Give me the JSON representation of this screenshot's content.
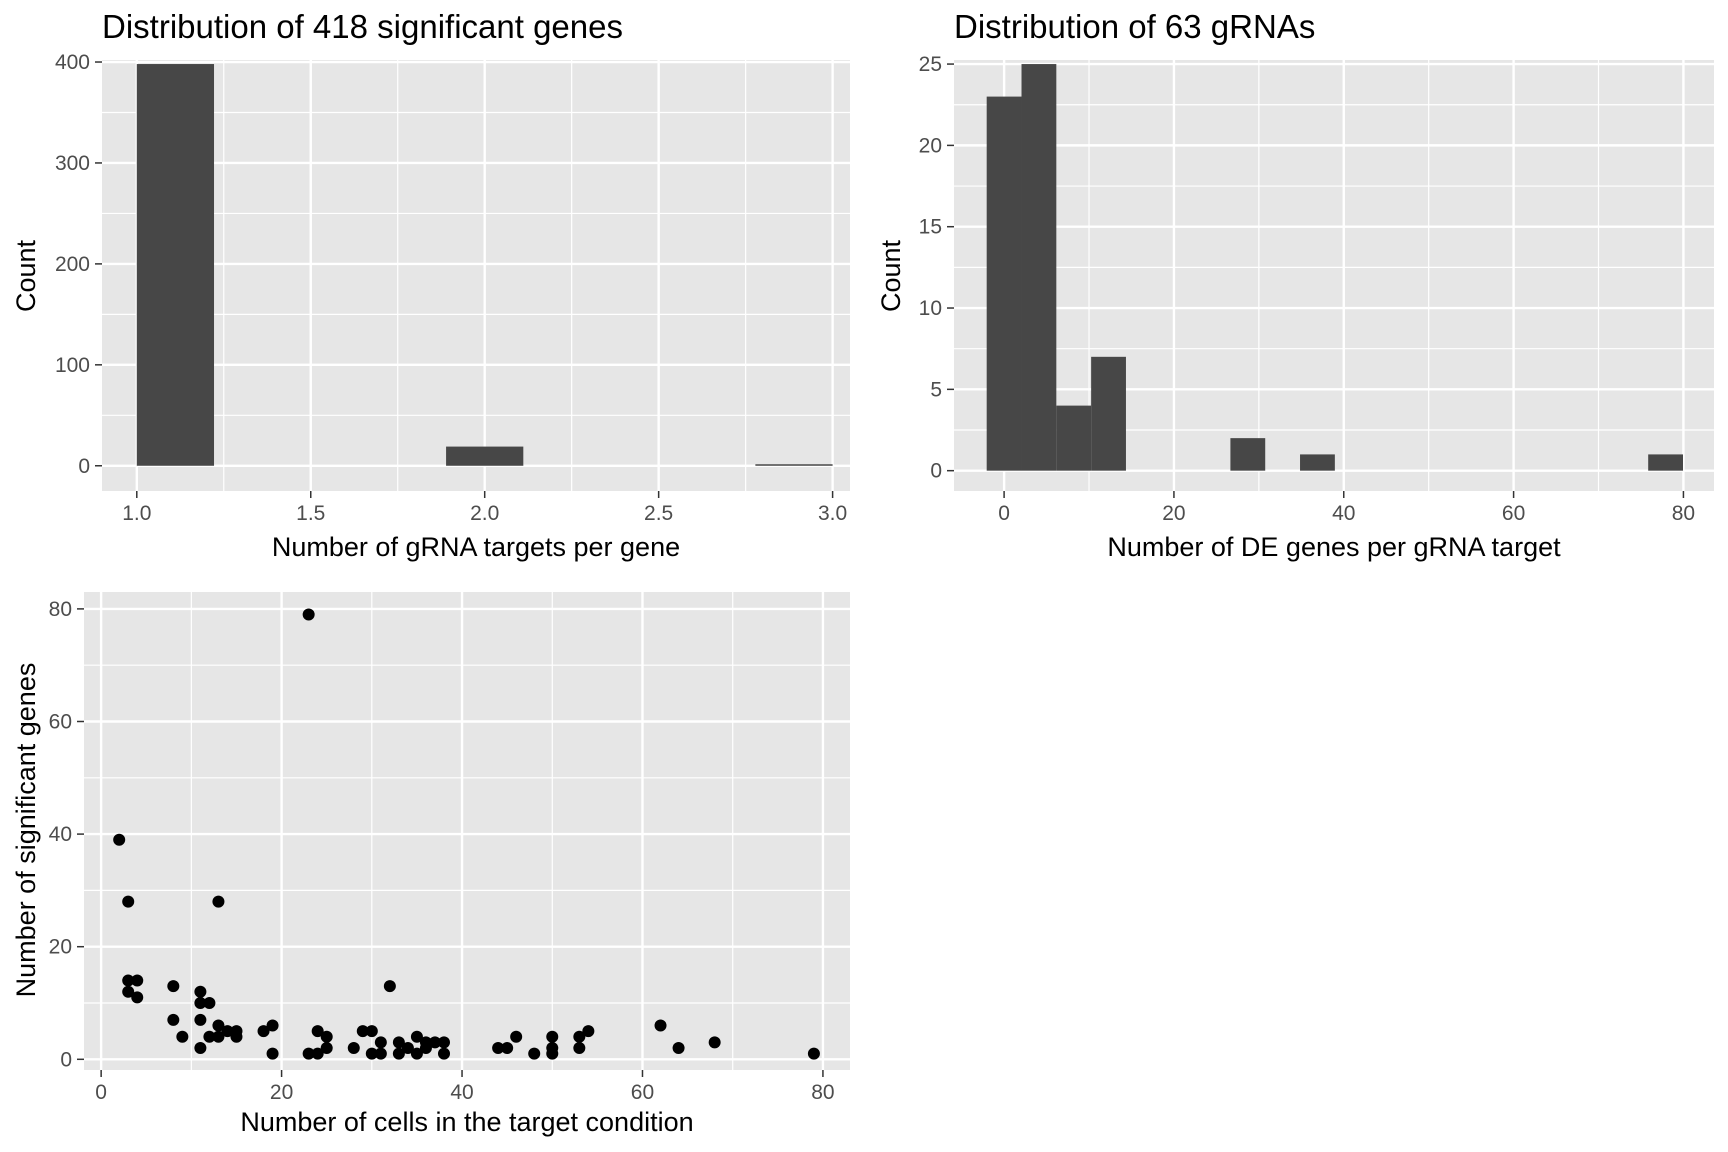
{
  "charts": [
    {
      "chart_data": {
        "type": "bar",
        "title": "Distribution of 418 significant genes",
        "xlabel": "Number of gRNA targets per gene",
        "ylabel": "Count",
        "xlim": [
          0.9,
          3.05
        ],
        "ylim": [
          -25,
          402
        ],
        "xticks": [
          1.0,
          1.5,
          2.0,
          2.5,
          3.0
        ],
        "xtick_labels": [
          "1.0",
          "1.5",
          "2.0",
          "2.5",
          "3.0"
        ],
        "yticks": [
          0,
          100,
          200,
          300,
          400
        ],
        "ytick_labels": [
          "0",
          "100",
          "200",
          "300",
          "400"
        ],
        "bins": [
          {
            "x0": 1.0,
            "x1": 1.222,
            "count": 398
          },
          {
            "x0": 1.889,
            "x1": 2.111,
            "count": 19
          },
          {
            "x0": 2.778,
            "x1": 3.0,
            "count": 1
          }
        ],
        "grid": true,
        "colors": {
          "panel": "#e6e6e6",
          "bar": "#474747",
          "grid": "#ffffff"
        }
      }
    },
    {
      "chart_data": {
        "type": "bar",
        "title": "Distribution of 63 gRNAs",
        "xlabel": "Number of DE genes per gRNA target",
        "ylabel": "Count",
        "xlim": [
          -5.9,
          83.6
        ],
        "ylim": [
          -1.25,
          25.25
        ],
        "xticks": [
          0,
          20,
          40,
          60,
          80
        ],
        "xtick_labels": [
          "0",
          "20",
          "40",
          "60",
          "80"
        ],
        "yticks": [
          0,
          5,
          10,
          15,
          20,
          25
        ],
        "ytick_labels": [
          "0",
          "5",
          "10",
          "15",
          "20",
          "25"
        ],
        "bins": [
          {
            "x0": -2.05,
            "x1": 2.05,
            "count": 23
          },
          {
            "x0": 2.05,
            "x1": 6.15,
            "count": 25
          },
          {
            "x0": 6.15,
            "x1": 10.25,
            "count": 4
          },
          {
            "x0": 10.25,
            "x1": 14.35,
            "count": 7
          },
          {
            "x0": 26.65,
            "x1": 30.75,
            "count": 2
          },
          {
            "x0": 34.85,
            "x1": 38.95,
            "count": 1
          },
          {
            "x0": 75.85,
            "x1": 79.95,
            "count": 1
          }
        ],
        "grid": true,
        "colors": {
          "panel": "#e6e6e6",
          "bar": "#474747",
          "grid": "#ffffff"
        }
      }
    },
    {
      "chart_data": {
        "type": "scatter",
        "title": "",
        "xlabel": "Number of cells in the target condition",
        "ylabel": "Number of significant genes",
        "xlim": [
          -1.9,
          83.0
        ],
        "ylim": [
          -1.9,
          83.0
        ],
        "xticks": [
          0,
          20,
          40,
          60,
          80
        ],
        "xtick_labels": [
          "0",
          "20",
          "40",
          "60",
          "80"
        ],
        "yticks": [
          0,
          20,
          40,
          60,
          80
        ],
        "ytick_labels": [
          "0",
          "20",
          "40",
          "60",
          "80"
        ],
        "points": [
          [
            2,
            39
          ],
          [
            3,
            28
          ],
          [
            3,
            14
          ],
          [
            3,
            12
          ],
          [
            4,
            14
          ],
          [
            4,
            11
          ],
          [
            8,
            13
          ],
          [
            8,
            7
          ],
          [
            9,
            4
          ],
          [
            11,
            12
          ],
          [
            11,
            10
          ],
          [
            11,
            7
          ],
          [
            11,
            2
          ],
          [
            12,
            10
          ],
          [
            12,
            4
          ],
          [
            13,
            28
          ],
          [
            13,
            6
          ],
          [
            13,
            4
          ],
          [
            14,
            5
          ],
          [
            15,
            5
          ],
          [
            15,
            4
          ],
          [
            18,
            5
          ],
          [
            19,
            6
          ],
          [
            19,
            1
          ],
          [
            23,
            79
          ],
          [
            23,
            1
          ],
          [
            24,
            5
          ],
          [
            24,
            1
          ],
          [
            25,
            4
          ],
          [
            25,
            2
          ],
          [
            28,
            2
          ],
          [
            29,
            5
          ],
          [
            30,
            5
          ],
          [
            30,
            1
          ],
          [
            31,
            3
          ],
          [
            31,
            1
          ],
          [
            32,
            13
          ],
          [
            33,
            3
          ],
          [
            33,
            1
          ],
          [
            34,
            2
          ],
          [
            35,
            4
          ],
          [
            35,
            1
          ],
          [
            36,
            3
          ],
          [
            36,
            2
          ],
          [
            37,
            3
          ],
          [
            38,
            3
          ],
          [
            38,
            1
          ],
          [
            44,
            2
          ],
          [
            45,
            2
          ],
          [
            46,
            4
          ],
          [
            48,
            1
          ],
          [
            50,
            4
          ],
          [
            50,
            2
          ],
          [
            50,
            1
          ],
          [
            53,
            4
          ],
          [
            53,
            2
          ],
          [
            54,
            5
          ],
          [
            62,
            6
          ],
          [
            64,
            2
          ],
          [
            68,
            3
          ],
          [
            79,
            1
          ]
        ],
        "grid": true,
        "colors": {
          "panel": "#e6e6e6",
          "point": "#000000",
          "grid": "#ffffff"
        }
      }
    }
  ]
}
